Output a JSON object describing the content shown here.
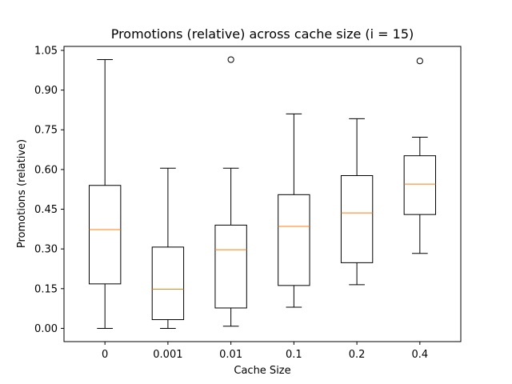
{
  "chart_data": {
    "type": "box",
    "title": "Promotions (relative) across cache size (i = 15)",
    "xlabel": "Cache Size",
    "ylabel": "Promotions (relative)",
    "ylim": [
      -0.05,
      1.065
    ],
    "yticks": [
      "0.00",
      "0.15",
      "0.30",
      "0.45",
      "0.60",
      "0.75",
      "0.90",
      "1.05"
    ],
    "categories": [
      "0",
      "0.001",
      "0.01",
      "0.1",
      "0.2",
      "0.4"
    ],
    "boxes": [
      {
        "category": "0",
        "whisker_low": 0.0,
        "q1": 0.168,
        "median": 0.373,
        "q3": 0.54,
        "whisker_high": 1.015,
        "outliers": []
      },
      {
        "category": "0.001",
        "whisker_low": 0.0,
        "q1": 0.033,
        "median": 0.148,
        "q3": 0.307,
        "whisker_high": 0.605,
        "outliers": []
      },
      {
        "category": "0.01",
        "whisker_low": 0.008,
        "q1": 0.077,
        "median": 0.297,
        "q3": 0.39,
        "whisker_high": 0.605,
        "outliers": [
          1.015
        ]
      },
      {
        "category": "0.1",
        "whisker_low": 0.08,
        "q1": 0.162,
        "median": 0.385,
        "q3": 0.505,
        "whisker_high": 0.81,
        "outliers": []
      },
      {
        "category": "0.2",
        "whisker_low": 0.165,
        "q1": 0.248,
        "median": 0.436,
        "q3": 0.577,
        "whisker_high": 0.792,
        "outliers": []
      },
      {
        "category": "0.4",
        "whisker_low": 0.283,
        "q1": 0.43,
        "median": 0.545,
        "q3": 0.652,
        "whisker_high": 0.722,
        "outliers": [
          1.01
        ]
      }
    ],
    "colors": {
      "box": "#000000",
      "median": "#ff7f0e",
      "outlier": "#000000"
    },
    "grid": false,
    "legend": "none"
  }
}
